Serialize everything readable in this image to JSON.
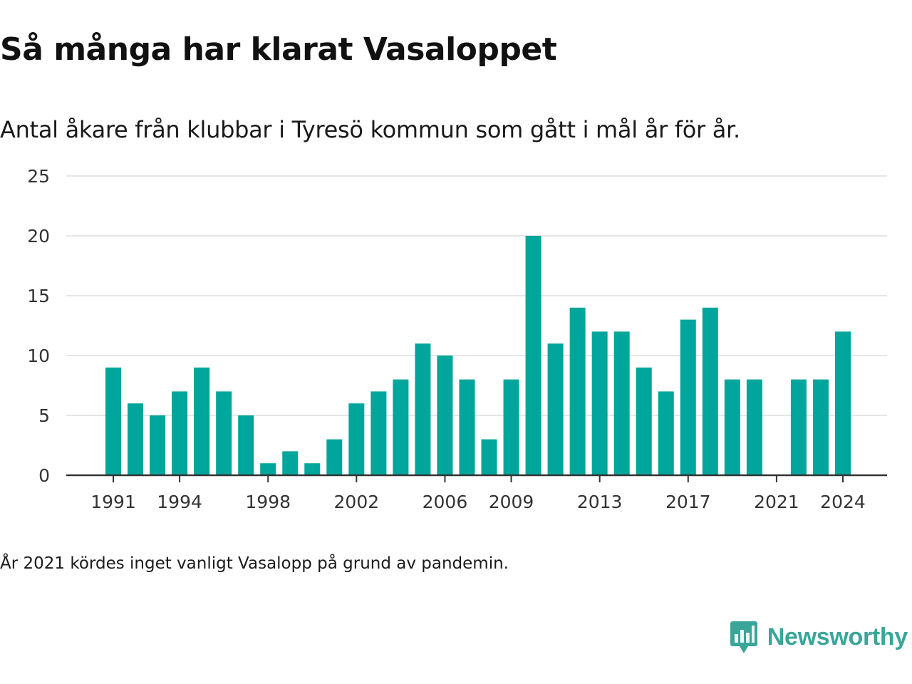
{
  "header": {
    "title": "Så många har klarat Vasaloppet",
    "subtitle": "Antal åkare från klubbar i Tyresö kommun som gått i mål år för år."
  },
  "footer": {
    "note": "År 2021 kördes inget vanligt Vasalopp på grund av pandemin."
  },
  "brand": {
    "name": "Newsworthy",
    "logo_icon": "newsworthy-logo-icon",
    "color": "#3aa69a"
  },
  "chart_data": {
    "type": "bar",
    "bar_color": "#00a69b",
    "grid": true,
    "ylim": [
      0,
      25
    ],
    "y_ticks": [
      0,
      5,
      10,
      15,
      20,
      25
    ],
    "x_tick_labels": [
      1991,
      1994,
      1998,
      2002,
      2006,
      2009,
      2013,
      2017,
      2021,
      2024
    ],
    "categories": [
      1991,
      1992,
      1993,
      1994,
      1995,
      1996,
      1997,
      1998,
      1999,
      2000,
      2001,
      2002,
      2003,
      2004,
      2005,
      2006,
      2007,
      2008,
      2009,
      2010,
      2011,
      2012,
      2013,
      2014,
      2015,
      2016,
      2017,
      2018,
      2019,
      2020,
      2021,
      2022,
      2023,
      2024
    ],
    "values": [
      9,
      6,
      5,
      7,
      9,
      7,
      5,
      1,
      2,
      1,
      3,
      6,
      7,
      8,
      11,
      10,
      8,
      3,
      8,
      20,
      11,
      14,
      12,
      12,
      9,
      7,
      13,
      14,
      8,
      8,
      null,
      8,
      8,
      12
    ]
  }
}
